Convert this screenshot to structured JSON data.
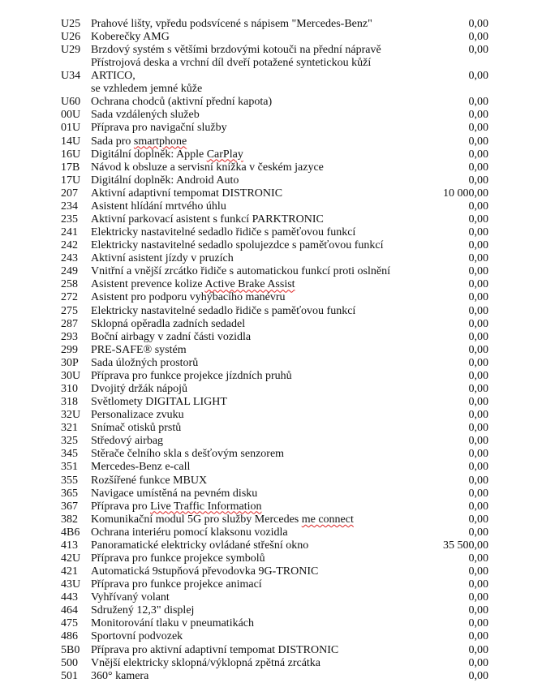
{
  "document": {
    "rows": [
      {
        "code": "U25",
        "desc": "Prahové lišty, vpředu podsvícené s nápisem \"Mercedes-Benz\"",
        "price": "0,00"
      },
      {
        "code": "U26",
        "desc": "Koberečky AMG",
        "price": "0,00"
      },
      {
        "code": "U29",
        "desc": "Brzdový systém s většími brzdovými kotouči na přední nápravě",
        "price": "0,00"
      },
      {
        "code": "U34",
        "desc": "Přístrojová deska a vrchní díl dveří potažené syntetickou kůží ARTICO,",
        "desc2": "se vzhledem jemné kůže",
        "price": "0,00"
      },
      {
        "code": "U60",
        "desc": "Ochrana chodců (aktivní přední kapota)",
        "price": "0,00"
      },
      {
        "code": "00U",
        "desc": "Sada vzdálených služeb",
        "price": "0,00"
      },
      {
        "code": "01U",
        "desc": "Příprava pro navigační služby",
        "price": "0,00"
      },
      {
        "code": "14U",
        "desc": "Sada pro ",
        "flag": "smartphone",
        "price": "0,00"
      },
      {
        "code": "16U",
        "desc": "Digitální doplněk: Apple ",
        "flag": "CarPlay",
        "price": "0,00"
      },
      {
        "code": "17B",
        "desc": "Návod k obsluze a servisní knížka v českém jazyce",
        "price": "0,00"
      },
      {
        "code": "17U",
        "desc": "Digitální doplněk: Android Auto",
        "price": "0,00"
      },
      {
        "code": "207",
        "desc": "Aktivní adaptivní tempomat DISTRONIC",
        "price": "10 000,00"
      },
      {
        "code": "234",
        "desc": "Asistent hlídání mrtvého úhlu",
        "price": "0,00"
      },
      {
        "code": "235",
        "desc": "Aktivní parkovací asistent s funkcí PARKTRONIC",
        "price": "0,00"
      },
      {
        "code": "241",
        "desc": "Elektricky nastavitelné sedadlo řidiče s paměťovou funkcí",
        "price": "0,00"
      },
      {
        "code": "242",
        "desc": "Elektricky nastavitelné sedadlo spolujezdce s paměťovou funkcí",
        "price": "0,00"
      },
      {
        "code": "243",
        "desc": "Aktivní asistent jízdy v pruzích",
        "price": "0,00"
      },
      {
        "code": "249",
        "desc": "Vnitřní a vnější zrcátko řidiče s automatickou funkcí proti oslnění",
        "price": "0,00"
      },
      {
        "code": "258",
        "desc": "Asistent prevence kolize ",
        "flag": "Active Brake Assist",
        "price": "0,00"
      },
      {
        "code": "272",
        "desc": "Asistent pro podporu vyhýbacího manévru",
        "price": "0,00"
      },
      {
        "code": "275",
        "desc": "Elektricky nastavitelné sedadlo řidiče s paměťovou funkcí",
        "price": "0,00"
      },
      {
        "code": "287",
        "desc": "Sklopná opěradla zadních sedadel",
        "price": "0,00"
      },
      {
        "code": "293",
        "desc": "Boční airbagy v zadní části vozidla",
        "price": "0,00"
      },
      {
        "code": "299",
        "desc": "PRE-SAFE® systém",
        "price": "0,00"
      },
      {
        "code": "30P",
        "desc": "Sada úložných prostorů",
        "price": "0,00"
      },
      {
        "code": "30U",
        "desc": "Příprava pro funkce projekce jízdních pruhů",
        "price": "0,00"
      },
      {
        "code": "310",
        "desc": "Dvojitý držák nápojů",
        "price": "0,00"
      },
      {
        "code": "318",
        "desc": "Světlomety DIGITAL LIGHT",
        "price": "0,00"
      },
      {
        "code": "32U",
        "desc": "Personalizace zvuku",
        "price": "0,00"
      },
      {
        "code": "321",
        "desc": "Snímač otisků prstů",
        "price": "0,00"
      },
      {
        "code": "325",
        "desc": "Středový airbag",
        "price": "0,00"
      },
      {
        "code": "345",
        "desc": "Stěrače čelního skla s dešťovým senzorem",
        "price": "0,00"
      },
      {
        "code": "351",
        "desc": "Mercedes-Benz e-call",
        "price": "0,00"
      },
      {
        "code": "355",
        "desc": "Rozšířené funkce MBUX",
        "price": "0,00"
      },
      {
        "code": "365",
        "desc": "Navigace umístěná na pevném disku",
        "price": "0,00"
      },
      {
        "code": "367",
        "desc": "Příprava pro ",
        "flag": "Live Traffic Information",
        "price": "0,00"
      },
      {
        "code": "382",
        "desc": "Komunikační modul 5G pro služby Mercedes ",
        "flag": "me connect",
        "price": "0,00"
      },
      {
        "code": "4B6",
        "desc": "Ochrana interiéru pomocí klaksonu vozidla",
        "price": "0,00"
      },
      {
        "code": "413",
        "desc": "Panoramatické elektricky ovládané střešní okno",
        "price": "35 500,00"
      },
      {
        "code": "42U",
        "desc": "Příprava pro funkce projekce symbolů",
        "price": "0,00"
      },
      {
        "code": "421",
        "desc": "Automatická 9stupňová převodovka 9G-TRONIC",
        "price": "0,00"
      },
      {
        "code": "43U",
        "desc": "Příprava pro funkce projekce animací",
        "price": "0,00"
      },
      {
        "code": "443",
        "desc": "Vyhřívaný volant",
        "price": "0,00"
      },
      {
        "code": "464",
        "desc": "Sdružený 12,3\" displej",
        "price": "0,00"
      },
      {
        "code": "475",
        "desc": "Monitorování tlaku v pneumatikách",
        "price": "0,00"
      },
      {
        "code": "486",
        "desc": "Sportovní podvozek",
        "price": "0,00"
      },
      {
        "code": "5B0",
        "desc": "Příprava pro aktivní adaptivní tempomat DISTRONIC",
        "price": "0,00"
      },
      {
        "code": "500",
        "desc": "Vnější elektricky sklopná/výklopná zpětná zrcátka",
        "price": "0,00"
      },
      {
        "code": "501",
        "desc": "360° kamera",
        "price": "0,00"
      }
    ]
  }
}
